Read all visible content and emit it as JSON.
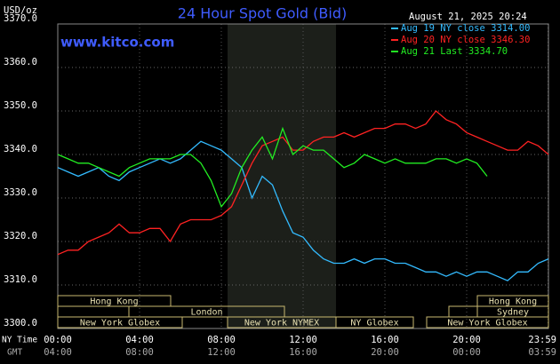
{
  "chart_data": {
    "type": "line",
    "title": "24 Hour Spot Gold (Bid)",
    "website": "www.kitco.com",
    "timestamp": "August 21, 2025 20:24",
    "y_label": "USD/oz",
    "x_row_labels": [
      "NY Time",
      "GMT"
    ],
    "x": [
      0,
      0.5,
      1,
      1.5,
      2,
      2.5,
      3,
      3.5,
      4,
      4.5,
      5,
      5.5,
      6,
      6.5,
      7,
      7.5,
      8,
      8.5,
      9,
      9.5,
      10,
      10.5,
      11,
      11.5,
      12,
      12.5,
      13,
      13.5,
      14,
      14.5,
      15,
      15.5,
      16,
      16.5,
      17,
      17.5,
      18,
      18.5,
      19,
      19.5,
      20,
      20.5,
      21,
      21.5,
      22,
      22.5,
      23,
      23.5,
      24
    ],
    "series": [
      {
        "name": "Aug 19 NY close 3314.00",
        "color": "#33bbff",
        "values": [
          3337,
          3336,
          3335,
          3336,
          3337,
          3335,
          3334,
          3336,
          3337,
          3338,
          3339,
          3338,
          3339,
          3341,
          3343,
          3342,
          3341,
          3339,
          3337,
          3330,
          3335,
          3333,
          3327,
          3322,
          3321,
          3318,
          3316,
          3315,
          3315,
          3316,
          3315,
          3316,
          3316,
          3315,
          3315,
          3314,
          3313,
          3313,
          3312,
          3313,
          3312,
          3313,
          3313,
          3312,
          3311,
          3313,
          3313,
          3315,
          3316
        ]
      },
      {
        "name": "Aug 20 NY close 3346.30",
        "color": "#ff2222",
        "values": [
          3317,
          3318,
          3318,
          3320,
          3321,
          3322,
          3324,
          3322,
          3322,
          3323,
          3323,
          3320,
          3324,
          3325,
          3325,
          3325,
          3326,
          3328,
          3333,
          3338,
          3342,
          3343,
          3344,
          3341,
          3341,
          3343,
          3344,
          3344,
          3345,
          3344,
          3345,
          3346,
          3346,
          3347,
          3347,
          3346,
          3347,
          3350,
          3348,
          3347,
          3345,
          3344,
          3343,
          3342,
          3341,
          3341,
          3343,
          3342,
          3340
        ]
      },
      {
        "name": "Aug 21 Last 3334.70",
        "color": "#22ee22",
        "values": [
          3340,
          3339,
          3338,
          3338,
          3337,
          3336,
          3335,
          3337,
          3338,
          3339,
          3339,
          3339,
          3340,
          3340,
          3338,
          3334,
          3328,
          3331,
          3337,
          3341,
          3344,
          3339,
          3346,
          3340,
          3342,
          3341,
          3341,
          3339,
          3337,
          3338,
          3340,
          3339,
          3338,
          3339,
          3338,
          3338,
          3338,
          3339,
          3339,
          3338,
          3339,
          3338,
          3335,
          null,
          null,
          null,
          null,
          null,
          null
        ]
      }
    ],
    "xlim": [
      0,
      24
    ],
    "ylim": [
      3300,
      3370
    ],
    "yticks": [
      {
        "value": 3300,
        "label": "3300.0"
      },
      {
        "value": 3310,
        "label": "3310.0"
      },
      {
        "value": 3320,
        "label": "3320.0"
      },
      {
        "value": 3330,
        "label": "3330.0"
      },
      {
        "value": 3340,
        "label": "3340.0"
      },
      {
        "value": 3350,
        "label": "3350.0"
      },
      {
        "value": 3360,
        "label": "3360.0"
      },
      {
        "value": 3370,
        "label": "3370.0"
      }
    ],
    "xticks": [
      {
        "value": 0,
        "label": "00:00"
      },
      {
        "value": 4,
        "label": "04:00"
      },
      {
        "value": 8,
        "label": "08:00"
      },
      {
        "value": 12,
        "label": "12:00"
      },
      {
        "value": 16,
        "label": "16:00"
      },
      {
        "value": 20,
        "label": "20:00"
      },
      {
        "value": 23.98,
        "label": "23:59"
      }
    ],
    "x2ticks": [
      {
        "value": 0,
        "label": "04:00"
      },
      {
        "value": 4,
        "label": "08:00"
      },
      {
        "value": 8,
        "label": "12:00"
      },
      {
        "value": 12,
        "label": "16:00"
      },
      {
        "value": 16,
        "label": "20:00"
      },
      {
        "value": 20,
        "label": "00:00"
      },
      {
        "value": 23.98,
        "label": "03:59"
      }
    ],
    "sessions": [
      "Hong Kong",
      "London",
      "New York Globex",
      "New York NYMEX",
      "NY Globex",
      "Hong Kong",
      "Sydney",
      "New York Globex"
    ],
    "grid": true
  }
}
